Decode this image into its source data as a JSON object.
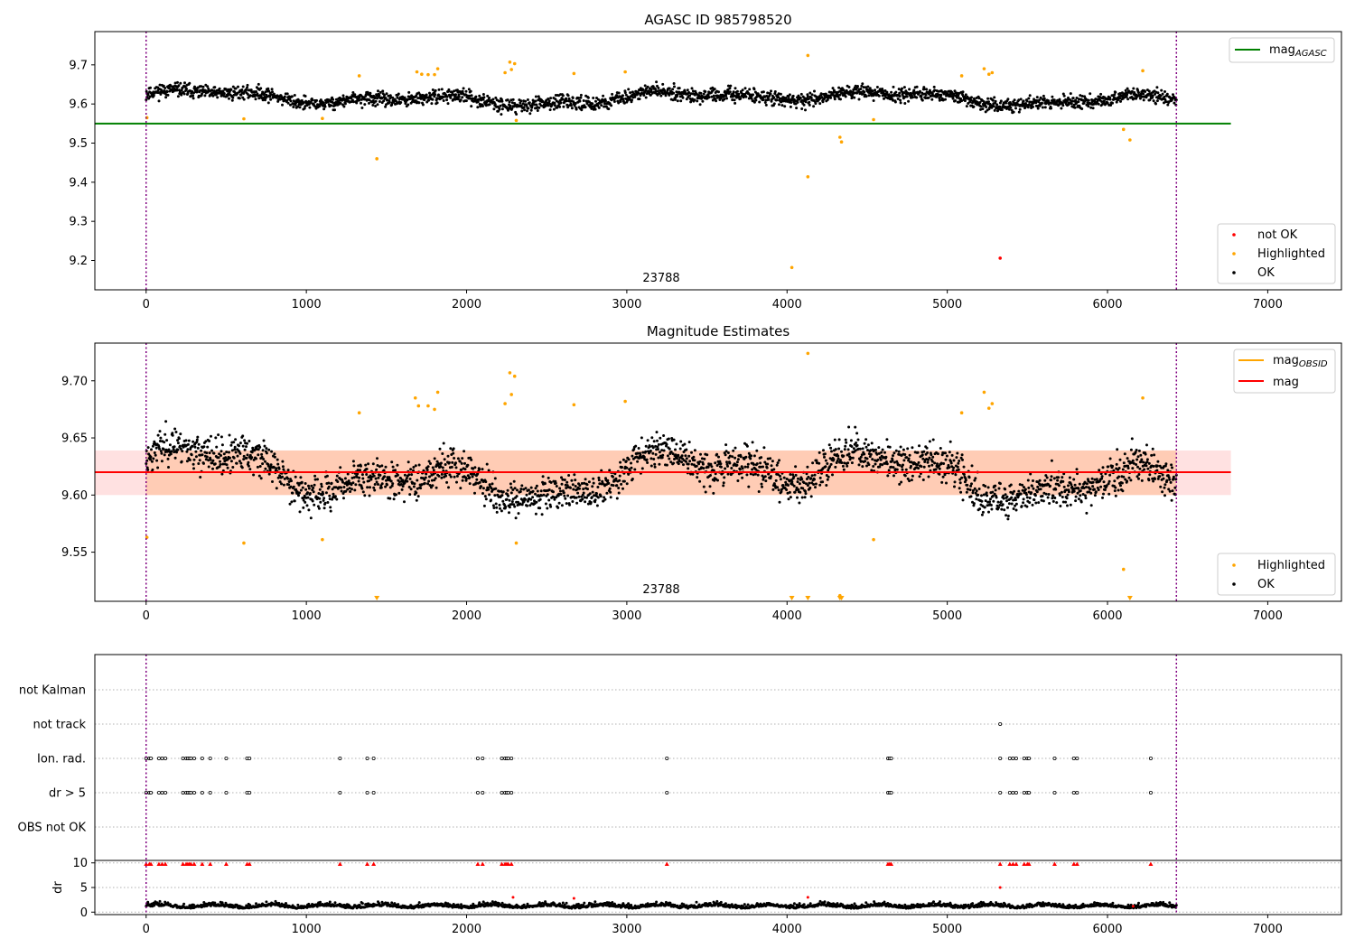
{
  "chart_data": [
    {
      "type": "scatter",
      "title": "AGASC ID 985798520",
      "xlim": [
        -320,
        7460
      ],
      "ylim": [
        9.125,
        9.785
      ],
      "xticks": [
        0,
        1000,
        2000,
        3000,
        4000,
        5000,
        6000,
        7000
      ],
      "yticks": [
        9.2,
        9.3,
        9.4,
        9.5,
        9.6,
        9.7
      ],
      "obsid_lines": [
        0,
        6430
      ],
      "obsid_label": "23788",
      "mag_agasc": {
        "name": "mag_AGASC",
        "value": 9.55,
        "x_range": [
          -320,
          6770
        ],
        "color": "#008000"
      },
      "ok_band": {
        "mean": 9.615,
        "amp": 0.018,
        "noise": 0.012,
        "color": "#000000"
      },
      "highlighted": [
        [
          5,
          9.565
        ],
        [
          610,
          9.562
        ],
        [
          1100,
          9.563
        ],
        [
          1440,
          9.46
        ],
        [
          1330,
          9.672
        ],
        [
          1690,
          9.682
        ],
        [
          1720,
          9.676
        ],
        [
          1760,
          9.675
        ],
        [
          1800,
          9.675
        ],
        [
          1820,
          9.69
        ],
        [
          2240,
          9.68
        ],
        [
          2270,
          9.707
        ],
        [
          2300,
          9.703
        ],
        [
          2280,
          9.688
        ],
        [
          2310,
          9.558
        ],
        [
          2670,
          9.678
        ],
        [
          2990,
          9.682
        ],
        [
          4030,
          9.182
        ],
        [
          4130,
          9.724
        ],
        [
          4130,
          9.414
        ],
        [
          4330,
          9.515
        ],
        [
          4340,
          9.503
        ],
        [
          4540,
          9.56
        ],
        [
          5090,
          9.672
        ],
        [
          5230,
          9.69
        ],
        [
          5260,
          9.676
        ],
        [
          5280,
          9.68
        ],
        [
          6100,
          9.535
        ],
        [
          6140,
          9.508
        ],
        [
          6220,
          9.685
        ]
      ],
      "not_ok": [
        [
          5330,
          9.206
        ]
      ],
      "legend_upper": [
        "mag_AGASC"
      ],
      "legend_lower": [
        {
          "label": "not OK",
          "color": "#ff0000"
        },
        {
          "label": "Highlighted",
          "color": "#ffa500"
        },
        {
          "label": "OK",
          "color": "#000000"
        }
      ]
    },
    {
      "type": "scatter",
      "title": "Magnitude Estimates",
      "xlim": [
        -320,
        7460
      ],
      "ylim": [
        9.507,
        9.733
      ],
      "xticks": [
        0,
        1000,
        2000,
        3000,
        4000,
        5000,
        6000,
        7000
      ],
      "yticks": [
        9.55,
        9.6,
        9.65,
        9.7
      ],
      "yticklabels": [
        "9.55",
        "9.60",
        "9.65",
        "9.70"
      ],
      "obsid_lines": [
        0,
        6430
      ],
      "obsid_label": "23788",
      "mag": {
        "name": "mag",
        "value": 9.62,
        "band": [
          9.6,
          9.639
        ],
        "x_range": [
          -320,
          6770
        ],
        "color": "#ff0000",
        "band_color": "#ffb3b3"
      },
      "mag_obsid": {
        "name": "mag_OBSID",
        "value": 9.62,
        "band": [
          9.6,
          9.639
        ],
        "x_range": [
          0,
          6430
        ],
        "color": "#ffa500",
        "band_color": "#ffb380"
      },
      "ok_band": {
        "mean": 9.618,
        "amp": 0.022,
        "noise": 0.011,
        "color": "#000000"
      },
      "highlighted": [
        [
          5,
          9.563
        ],
        [
          610,
          9.558
        ],
        [
          1100,
          9.561
        ],
        [
          1330,
          9.672
        ],
        [
          1680,
          9.685
        ],
        [
          1700,
          9.678
        ],
        [
          1760,
          9.678
        ],
        [
          1800,
          9.675
        ],
        [
          1820,
          9.69
        ],
        [
          2240,
          9.68
        ],
        [
          2270,
          9.707
        ],
        [
          2300,
          9.704
        ],
        [
          2280,
          9.688
        ],
        [
          2310,
          9.558
        ],
        [
          2670,
          9.679
        ],
        [
          2990,
          9.682
        ],
        [
          4130,
          9.724
        ],
        [
          4330,
          9.512
        ],
        [
          4540,
          9.561
        ],
        [
          5090,
          9.672
        ],
        [
          5230,
          9.69
        ],
        [
          5260,
          9.676
        ],
        [
          5280,
          9.68
        ],
        [
          6100,
          9.535
        ],
        [
          6220,
          9.685
        ]
      ],
      "clipped_low": [
        1440,
        4030,
        4130,
        4330,
        4340,
        6140
      ],
      "legend_upper": [
        {
          "label": "mag_OBSID",
          "color": "#ffa500"
        },
        {
          "label": "mag",
          "color": "#ff0000"
        }
      ],
      "legend_lower": [
        {
          "label": "Highlighted",
          "color": "#ffa500"
        },
        {
          "label": "OK",
          "color": "#000000"
        }
      ]
    },
    {
      "type": "scatter",
      "title": "",
      "xlim": [
        -320,
        7460
      ],
      "xticks": [
        0,
        1000,
        2000,
        3000,
        4000,
        5000,
        6000,
        7000
      ],
      "obsid_lines": [
        0,
        6430
      ],
      "flag_rows": [
        "not Kalman",
        "not track",
        "Ion. rad.",
        "dr > 5",
        "OBS not OK"
      ],
      "flag_points": {
        "not track": [
          5330
        ],
        "Ion. rad.": [
          0,
          20,
          30,
          80,
          100,
          120,
          230,
          250,
          260,
          270,
          280,
          300,
          350,
          400,
          500,
          630,
          645,
          1210,
          1380,
          1420,
          2070,
          2100,
          2220,
          2240,
          2250,
          2260,
          2280,
          3250,
          4630,
          4640,
          4650,
          5330,
          5390,
          5410,
          5430,
          5480,
          5500,
          5510,
          5670,
          5790,
          5810,
          6270
        ],
        "dr > 5": [
          0,
          20,
          30,
          80,
          100,
          120,
          230,
          250,
          260,
          270,
          280,
          300,
          350,
          400,
          500,
          630,
          645,
          1210,
          1380,
          1420,
          2070,
          2100,
          2220,
          2240,
          2250,
          2260,
          2280,
          3250,
          4630,
          4640,
          4650,
          5330,
          5390,
          5410,
          5430,
          5480,
          5500,
          5510,
          5670,
          5790,
          5810,
          6270
        ]
      },
      "dr": {
        "ylabel": "dr",
        "ylim": [
          -0.5,
          10.5
        ],
        "yticks": [
          0,
          5,
          10
        ],
        "threshold": 5,
        "ok_mean": 1.0,
        "ok_noise": 0.55,
        "capped_red_x": [
          0,
          20,
          30,
          80,
          100,
          120,
          230,
          250,
          260,
          270,
          280,
          300,
          350,
          400,
          500,
          630,
          645,
          1210,
          1380,
          1420,
          2070,
          2100,
          2220,
          2240,
          2250,
          2260,
          2280,
          3250,
          4630,
          4640,
          4650,
          5330,
          5390,
          5410,
          5430,
          5480,
          5500,
          5510,
          5670,
          5790,
          5810,
          6270
        ],
        "red_points": [
          [
            2290,
            3.0
          ],
          [
            2670,
            2.8
          ],
          [
            4130,
            3.0
          ],
          [
            5330,
            5.0
          ],
          [
            6160,
            1.2
          ]
        ]
      }
    }
  ]
}
